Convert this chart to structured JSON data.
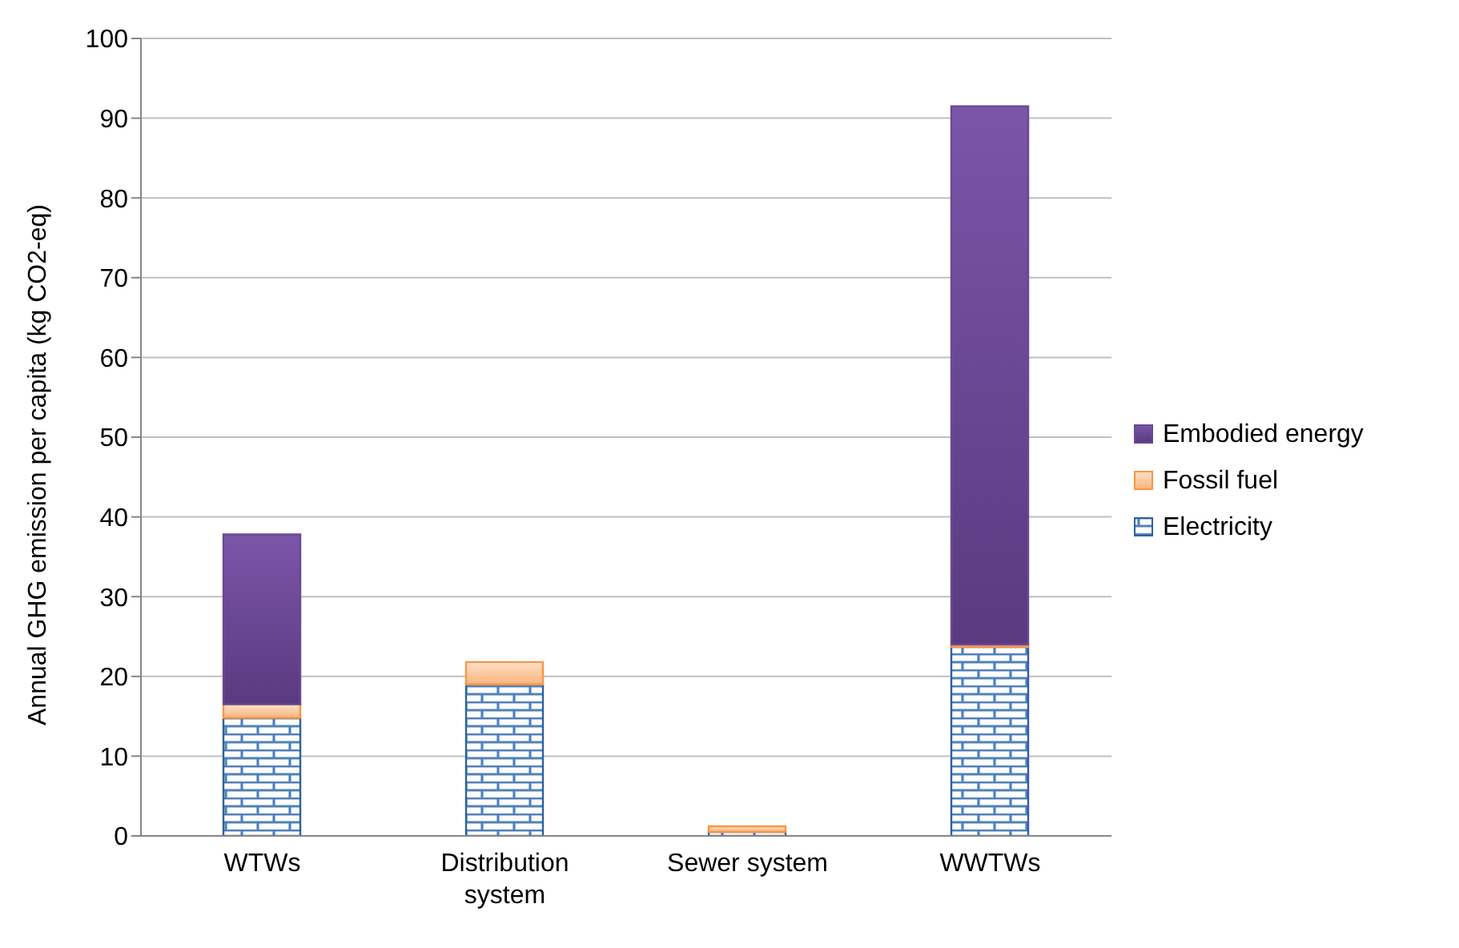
{
  "chart_data": {
    "type": "bar",
    "stacked": true,
    "ylabel": "Annual GHG emission per capita (kg CO2-eq)",
    "categories": [
      "WTWs",
      "Distribution system",
      "Sewer system",
      "WWTWs"
    ],
    "series": [
      {
        "name": "Electricity",
        "color": "#2f5f9f",
        "values": [
          14.8,
          19.0,
          0.5,
          23.7
        ]
      },
      {
        "name": "Fossil fuel",
        "color": "#f79646",
        "values": [
          1.7,
          2.8,
          0.7,
          0.3
        ]
      },
      {
        "name": "Embodied energy",
        "color": "#6a4894",
        "values": [
          21.3,
          null,
          null,
          67.5
        ]
      }
    ],
    "ylim": [
      0,
      100
    ],
    "yticks": [
      0,
      10,
      20,
      30,
      40,
      50,
      60,
      70,
      80,
      90,
      100
    ],
    "grid": "y",
    "legend": "right"
  }
}
